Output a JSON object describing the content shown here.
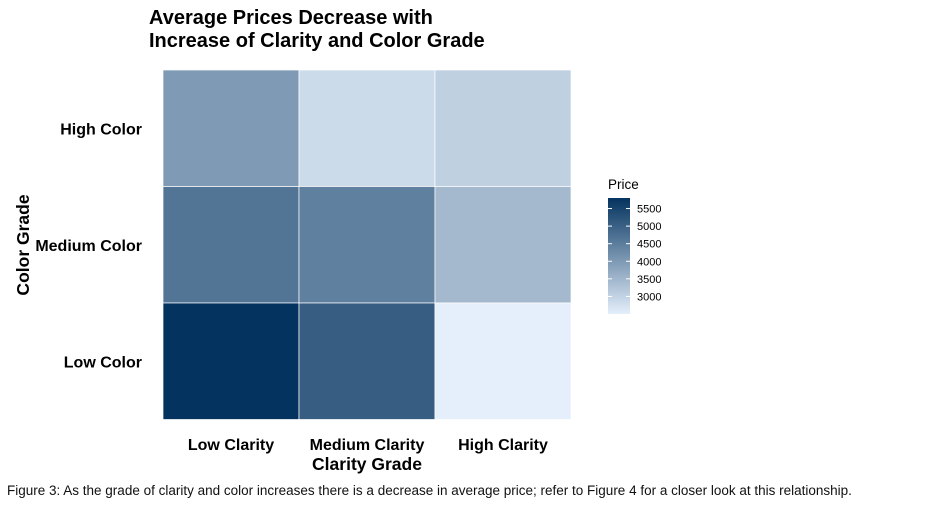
{
  "chart_data": {
    "type": "heatmap",
    "title_lines": [
      "Average Prices Decrease with",
      "Increase of Clarity and Color Grade"
    ],
    "xlabel": "Clarity Grade",
    "ylabel": "Color Grade",
    "x_categories": [
      "Low Clarity",
      "Medium Clarity",
      "High Clarity"
    ],
    "y_categories": [
      "High Color",
      "Medium Color",
      "Low Color"
    ],
    "values": [
      [
        4000,
        2850,
        3050
      ],
      [
        4650,
        4450,
        3450
      ],
      [
        5800,
        5050,
        2500
      ]
    ],
    "legend": {
      "title": "Price",
      "ticks": [
        5500,
        5000,
        4500,
        4000,
        3500,
        3000
      ],
      "range": [
        2500,
        5800
      ],
      "low_color": "#e4effb",
      "high_color": "#04335f"
    }
  },
  "caption": "Figure 3: As the grade of clarity and color increases there is a decrease in average price; refer to Figure 4 for a closer look at this relationship."
}
